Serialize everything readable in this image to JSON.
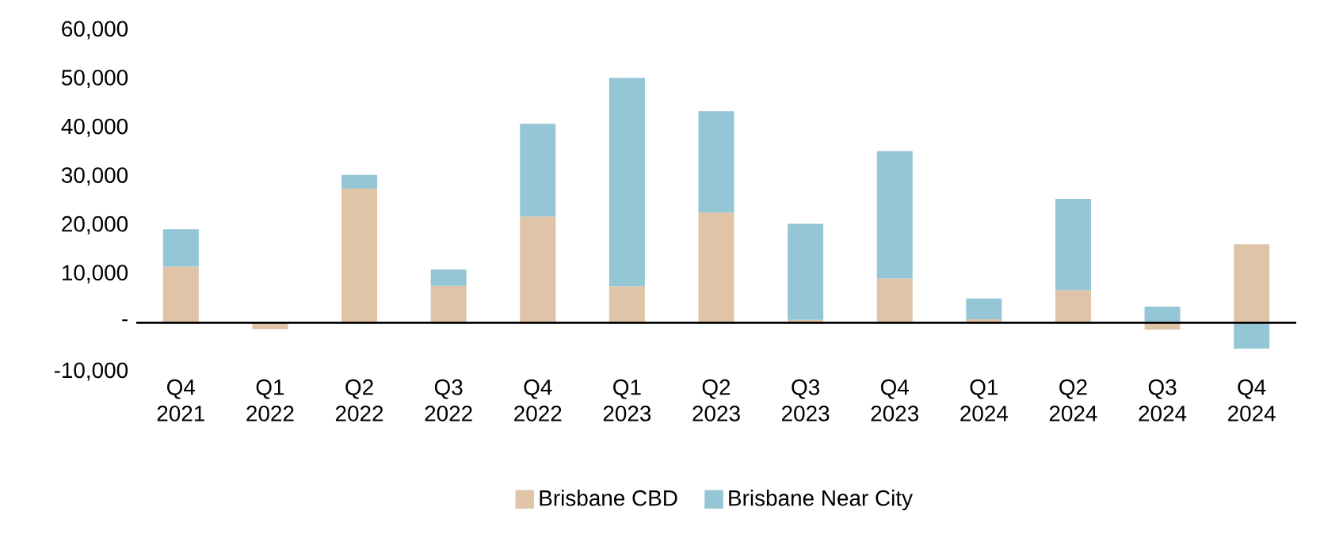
{
  "chart_data": {
    "type": "bar",
    "stacked": true,
    "categories": [
      "Q4 2021",
      "Q1 2022",
      "Q2 2022",
      "Q3 2022",
      "Q4 2022",
      "Q1 2023",
      "Q2 2023",
      "Q3 2023",
      "Q4 2023",
      "Q1 2024",
      "Q2 2024",
      "Q3 2024",
      "Q4 2024"
    ],
    "series": [
      {
        "name": "Brisbane CBD",
        "color": "#dfc4a8",
        "values": [
          11500,
          -1300,
          27500,
          7600,
          21800,
          7500,
          22600,
          600,
          9100,
          700,
          6700,
          -1400,
          16100
        ]
      },
      {
        "name": "Brisbane Near City",
        "color": "#95c6d5",
        "values": [
          7700,
          null,
          2800,
          3300,
          19000,
          42700,
          20800,
          19700,
          26100,
          4300,
          18700,
          3300,
          -5300
        ]
      }
    ],
    "ylim": [
      -10000,
      60000
    ],
    "yticks": [
      {
        "value": -10000,
        "label": "-10,000"
      },
      {
        "value": 0,
        "label": "-"
      },
      {
        "value": 10000,
        "label": "10,000"
      },
      {
        "value": 20000,
        "label": "20,000"
      },
      {
        "value": 30000,
        "label": "30,000"
      },
      {
        "value": 40000,
        "label": "40,000"
      },
      {
        "value": 50000,
        "label": "50,000"
      },
      {
        "value": 60000,
        "label": "60,000"
      }
    ],
    "grid": false,
    "legend": "bottom"
  }
}
